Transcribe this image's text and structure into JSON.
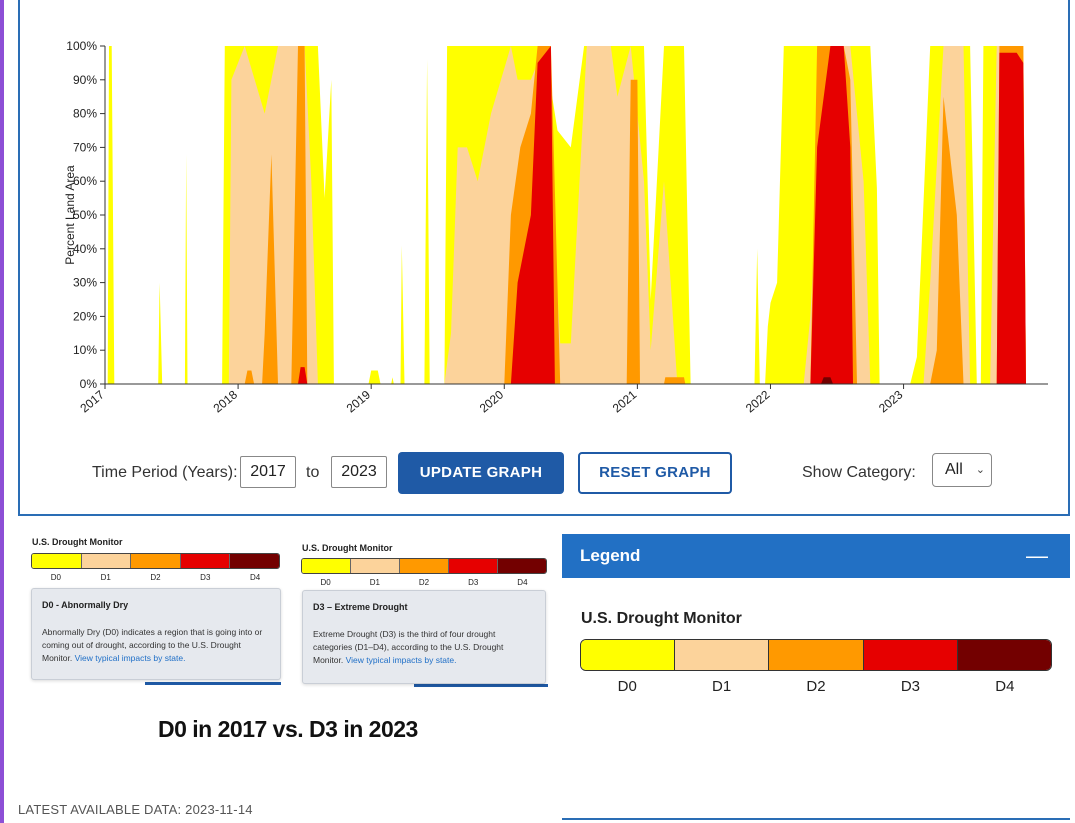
{
  "chart_data": {
    "type": "area",
    "stacked": true,
    "title": "",
    "xlabel": "",
    "ylabel": "Percent Land Area",
    "xlim": [
      2017.0,
      2023.95
    ],
    "ylim": [
      0,
      100
    ],
    "x_ticks": [
      "2017",
      "2018",
      "2019",
      "2020",
      "2021",
      "2022",
      "2023"
    ],
    "y_ticks": [
      "0%",
      "10%",
      "20%",
      "30%",
      "40%",
      "50%",
      "60%",
      "70%",
      "80%",
      "90%",
      "100%"
    ],
    "grid": false,
    "series": [
      {
        "color": "#ffff00",
        "points": [
          [
            2017.0,
            0
          ],
          [
            2017.02,
            0
          ],
          [
            2017.03,
            100
          ],
          [
            2017.05,
            100
          ],
          [
            2017.07,
            0
          ],
          [
            2017.4,
            0
          ],
          [
            2017.41,
            30
          ],
          [
            2017.43,
            0
          ],
          [
            2017.6,
            0
          ],
          [
            2017.61,
            68
          ],
          [
            2017.62,
            0
          ],
          [
            2017.88,
            0
          ],
          [
            2017.9,
            100
          ],
          [
            2018.0,
            100
          ],
          [
            2018.1,
            100
          ],
          [
            2018.35,
            100
          ],
          [
            2018.45,
            100
          ],
          [
            2018.52,
            100
          ],
          [
            2018.6,
            100
          ],
          [
            2018.65,
            55
          ],
          [
            2018.7,
            90
          ],
          [
            2018.72,
            0
          ],
          [
            2018.98,
            0
          ],
          [
            2019.0,
            4
          ],
          [
            2019.05,
            4
          ],
          [
            2019.07,
            0
          ],
          [
            2019.15,
            0
          ],
          [
            2019.16,
            2
          ],
          [
            2019.17,
            0
          ],
          [
            2019.22,
            0
          ],
          [
            2019.23,
            41
          ],
          [
            2019.25,
            0
          ],
          [
            2019.4,
            0
          ],
          [
            2019.42,
            96
          ],
          [
            2019.44,
            0
          ],
          [
            2019.55,
            0
          ],
          [
            2019.57,
            100
          ],
          [
            2019.75,
            100
          ],
          [
            2019.9,
            100
          ],
          [
            2020.1,
            100
          ],
          [
            2020.3,
            100
          ],
          [
            2020.4,
            75
          ],
          [
            2020.5,
            70
          ],
          [
            2020.6,
            100
          ],
          [
            2020.7,
            100
          ],
          [
            2020.9,
            100
          ],
          [
            2021.0,
            100
          ],
          [
            2021.05,
            100
          ],
          [
            2021.1,
            25
          ],
          [
            2021.2,
            100
          ],
          [
            2021.35,
            100
          ],
          [
            2021.4,
            0
          ],
          [
            2021.88,
            0
          ],
          [
            2021.9,
            40
          ],
          [
            2021.92,
            0
          ],
          [
            2021.96,
            0
          ],
          [
            2021.98,
            17
          ],
          [
            2022.0,
            24
          ],
          [
            2022.05,
            30
          ],
          [
            2022.1,
            100
          ],
          [
            2022.3,
            100
          ],
          [
            2022.5,
            100
          ],
          [
            2022.65,
            100
          ],
          [
            2022.75,
            100
          ],
          [
            2022.8,
            58
          ],
          [
            2022.82,
            0
          ],
          [
            2023.05,
            0
          ],
          [
            2023.1,
            8
          ],
          [
            2023.2,
            100
          ],
          [
            2023.4,
            100
          ],
          [
            2023.5,
            100
          ],
          [
            2023.55,
            0
          ],
          [
            2023.58,
            0
          ],
          [
            2023.6,
            100
          ],
          [
            2023.9,
            100
          ],
          [
            2023.92,
            0
          ]
        ]
      },
      {
        "color": "#fcd39b",
        "points": [
          [
            2017.0,
            0
          ],
          [
            2017.93,
            0
          ],
          [
            2017.95,
            90
          ],
          [
            2018.05,
            100
          ],
          [
            2018.2,
            80
          ],
          [
            2018.3,
            100
          ],
          [
            2018.45,
            100
          ],
          [
            2018.5,
            100
          ],
          [
            2018.55,
            60
          ],
          [
            2018.6,
            0
          ],
          [
            2019.55,
            0
          ],
          [
            2019.6,
            15
          ],
          [
            2019.65,
            70
          ],
          [
            2019.72,
            70
          ],
          [
            2019.8,
            60
          ],
          [
            2019.9,
            80
          ],
          [
            2020.05,
            100
          ],
          [
            2020.1,
            90
          ],
          [
            2020.2,
            90
          ],
          [
            2020.3,
            100
          ],
          [
            2020.42,
            12
          ],
          [
            2020.5,
            12
          ],
          [
            2020.62,
            100
          ],
          [
            2020.8,
            100
          ],
          [
            2020.85,
            85
          ],
          [
            2020.95,
            100
          ],
          [
            2021.05,
            60
          ],
          [
            2021.1,
            10
          ],
          [
            2021.2,
            60
          ],
          [
            2021.3,
            0
          ],
          [
            2022.25,
            0
          ],
          [
            2022.3,
            20
          ],
          [
            2022.4,
            100
          ],
          [
            2022.6,
            100
          ],
          [
            2022.7,
            60
          ],
          [
            2022.75,
            0
          ],
          [
            2023.15,
            0
          ],
          [
            2023.2,
            30
          ],
          [
            2023.3,
            100
          ],
          [
            2023.45,
            100
          ],
          [
            2023.5,
            0
          ],
          [
            2023.65,
            0
          ],
          [
            2023.7,
            100
          ],
          [
            2023.9,
            100
          ],
          [
            2023.92,
            0
          ]
        ]
      },
      {
        "color": "#ff9900",
        "points": [
          [
            2017.0,
            0
          ],
          [
            2018.05,
            0
          ],
          [
            2018.07,
            4
          ],
          [
            2018.1,
            4
          ],
          [
            2018.12,
            0
          ],
          [
            2018.18,
            0
          ],
          [
            2018.2,
            15
          ],
          [
            2018.25,
            68
          ],
          [
            2018.3,
            0
          ],
          [
            2018.4,
            0
          ],
          [
            2018.45,
            100
          ],
          [
            2018.5,
            100
          ],
          [
            2018.52,
            0
          ],
          [
            2020.0,
            0
          ],
          [
            2020.05,
            50
          ],
          [
            2020.12,
            70
          ],
          [
            2020.2,
            80
          ],
          [
            2020.25,
            100
          ],
          [
            2020.35,
            100
          ],
          [
            2020.42,
            0
          ],
          [
            2020.92,
            0
          ],
          [
            2020.95,
            90
          ],
          [
            2021.0,
            90
          ],
          [
            2021.02,
            0
          ],
          [
            2021.2,
            0
          ],
          [
            2021.21,
            2
          ],
          [
            2021.35,
            2
          ],
          [
            2021.36,
            0
          ],
          [
            2022.3,
            0
          ],
          [
            2022.35,
            100
          ],
          [
            2022.55,
            100
          ],
          [
            2022.6,
            90
          ],
          [
            2022.65,
            0
          ],
          [
            2023.2,
            0
          ],
          [
            2023.25,
            10
          ],
          [
            2023.3,
            85
          ],
          [
            2023.4,
            50
          ],
          [
            2023.45,
            0
          ],
          [
            2023.7,
            0
          ],
          [
            2023.72,
            100
          ],
          [
            2023.9,
            100
          ],
          [
            2023.92,
            0
          ]
        ]
      },
      {
        "color": "#e60000",
        "points": [
          [
            2017.0,
            0
          ],
          [
            2018.45,
            0
          ],
          [
            2018.47,
            5
          ],
          [
            2018.5,
            5
          ],
          [
            2018.52,
            0
          ],
          [
            2020.05,
            0
          ],
          [
            2020.1,
            30
          ],
          [
            2020.2,
            50
          ],
          [
            2020.25,
            95
          ],
          [
            2020.35,
            100
          ],
          [
            2020.38,
            0
          ],
          [
            2022.3,
            0
          ],
          [
            2022.35,
            70
          ],
          [
            2022.45,
            100
          ],
          [
            2022.55,
            100
          ],
          [
            2022.6,
            70
          ],
          [
            2022.62,
            0
          ],
          [
            2023.7,
            0
          ],
          [
            2023.72,
            98
          ],
          [
            2023.85,
            98
          ],
          [
            2023.9,
            95
          ],
          [
            2023.92,
            0
          ]
        ]
      },
      {
        "color": "#730000",
        "points": [
          [
            2017.0,
            0
          ],
          [
            2022.38,
            0
          ],
          [
            2022.4,
            2
          ],
          [
            2022.45,
            2
          ],
          [
            2022.47,
            0
          ],
          [
            2023.92,
            0
          ]
        ]
      }
    ]
  },
  "controls": {
    "time_period_label": "Time Period (Years):",
    "start_year": "2017",
    "to_label": "to",
    "end_year": "2023",
    "update_button": "UPDATE GRAPH",
    "reset_button": "RESET GRAPH",
    "show_category_label": "Show Category:",
    "show_category_value": "All"
  },
  "categories": [
    {
      "code": "D0",
      "color": "#ffff00"
    },
    {
      "code": "D1",
      "color": "#fcd39b"
    },
    {
      "code": "D2",
      "color": "#ff9900"
    },
    {
      "code": "D3",
      "color": "#e60000"
    },
    {
      "code": "D4",
      "color": "#730000"
    }
  ],
  "snippet_left": {
    "title": "U.S. Drought Monitor",
    "tooltip_title": "D0 - Abnormally Dry",
    "tooltip_body": "Abnormally Dry (D0) indicates a region that is going into or coming out of drought, according to the U.S. Drought Monitor.",
    "tooltip_link": "View typical impacts by state."
  },
  "snippet_right": {
    "title": "U.S. Drought Monitor",
    "tooltip_title": "D3 – Extreme Drought",
    "tooltip_body": "Extreme Drought (D3) is the third of four drought categories (D1–D4), according to the U.S. Drought Monitor.",
    "tooltip_link": "View typical impacts by state."
  },
  "caption": "D0 in 2017 vs. D3 in 2023",
  "latest_data": "LATEST AVAILABLE DATA: 2023-11-14",
  "legend": {
    "header": "Legend",
    "collapse_symbol": "—",
    "subtitle": "U.S. Drought Monitor"
  }
}
